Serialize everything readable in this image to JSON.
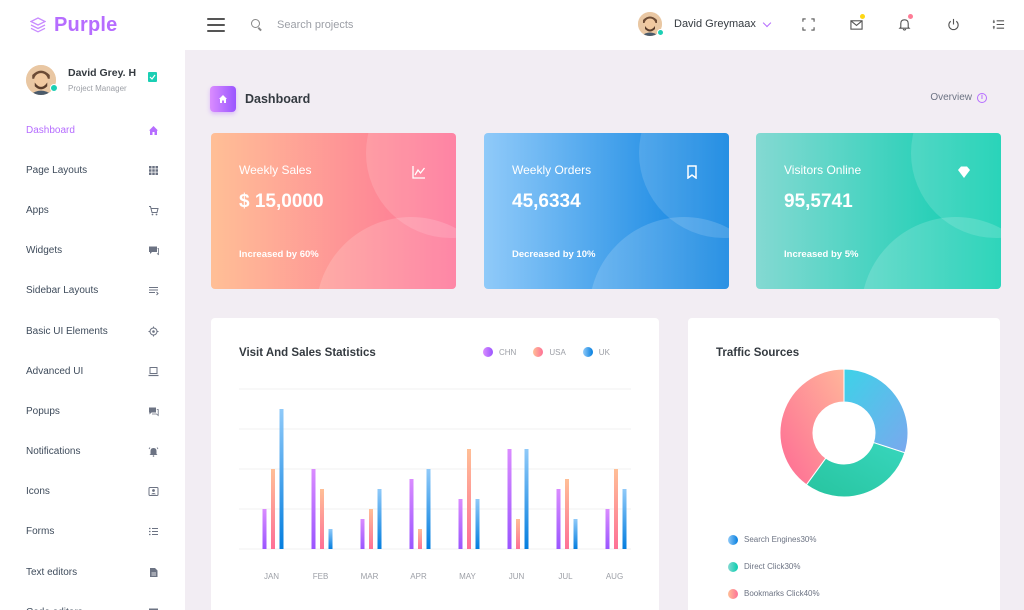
{
  "brand": {
    "name": "Purple"
  },
  "search": {
    "placeholder": "Search projects"
  },
  "user": {
    "name": "David Greymaax",
    "short_name": "David Grey. H",
    "role": "Project Manager"
  },
  "sidebar": {
    "items": [
      {
        "label": "Dashboard",
        "icon": "home-icon",
        "active": true
      },
      {
        "label": "Page Layouts",
        "icon": "grid-icon"
      },
      {
        "label": "Apps",
        "icon": "cart-icon"
      },
      {
        "label": "Widgets",
        "icon": "chat-icon"
      },
      {
        "label": "Sidebar Layouts",
        "icon": "list-icon"
      },
      {
        "label": "Basic UI Elements",
        "icon": "target-icon"
      },
      {
        "label": "Advanced UI",
        "icon": "laptop-icon"
      },
      {
        "label": "Popups",
        "icon": "forum-icon"
      },
      {
        "label": "Notifications",
        "icon": "bell-icon"
      },
      {
        "label": "Icons",
        "icon": "contacts-icon"
      },
      {
        "label": "Forms",
        "icon": "form-icon"
      },
      {
        "label": "Text editors",
        "icon": "doc-icon"
      },
      {
        "label": "Code editors",
        "icon": "code-icon"
      }
    ]
  },
  "page": {
    "title": "Dashboard",
    "overview_label": "Overview"
  },
  "cards": [
    {
      "title": "Weekly Sales",
      "value": "$ 15,0000",
      "note": "Increased by 60%",
      "icon": "chart-line-icon"
    },
    {
      "title": "Weekly Orders",
      "value": "45,6334",
      "note": "Decreased by 10%",
      "icon": "bookmark-icon"
    },
    {
      "title": "Visitors Online",
      "value": "95,5741",
      "note": "Increased by 5%",
      "icon": "diamond-icon"
    }
  ],
  "colors": {
    "accent": "#b66dff",
    "chn": "#b66dff",
    "usa": "#fe9496",
    "uk": "#4bb6f6",
    "pie_blue": "#4bc8f0",
    "pie_green": "#2ed3b0",
    "pie_pink": "#fe7096"
  },
  "chart_data": [
    {
      "type": "bar",
      "title": "Visit And Sales Statistics",
      "categories": [
        "JAN",
        "FEB",
        "MAR",
        "APR",
        "MAY",
        "JUN",
        "JUL",
        "AUG"
      ],
      "series": [
        {
          "name": "CHN",
          "values": [
            20,
            40,
            15,
            35,
            25,
            50,
            30,
            20
          ]
        },
        {
          "name": "USA",
          "values": [
            40,
            30,
            20,
            10,
            50,
            15,
            35,
            40
          ]
        },
        {
          "name": "UK",
          "values": [
            70,
            10,
            30,
            40,
            25,
            50,
            15,
            30
          ]
        }
      ],
      "ylim": [
        0,
        80
      ],
      "grid": true,
      "legend": "top-right"
    },
    {
      "type": "pie",
      "title": "Traffic Sources",
      "labels": [
        "Search Engines",
        "Direct Click",
        "Bookmarks Click"
      ],
      "values": [
        30,
        30,
        40
      ],
      "legend_labels": [
        "Search Engines30%",
        "Direct Click30%",
        "Bookmarks Click40%"
      ],
      "legend": "bottom"
    }
  ]
}
